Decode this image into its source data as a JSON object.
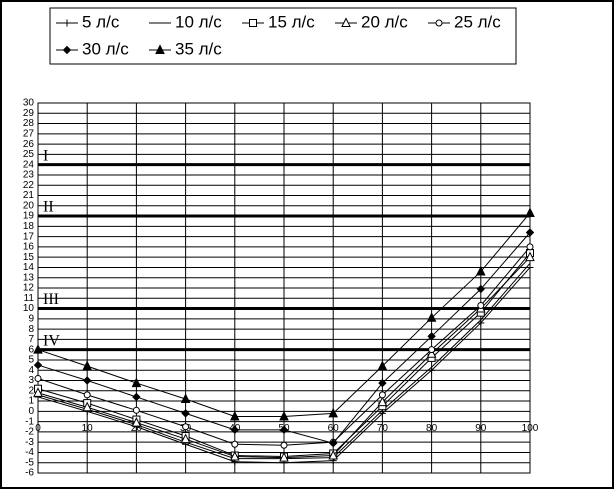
{
  "chart_data": {
    "type": "line",
    "x": [
      0,
      10,
      20,
      30,
      40,
      50,
      60,
      70,
      80,
      90,
      100
    ],
    "xlim": [
      0,
      100
    ],
    "xticks": [
      0,
      10,
      20,
      30,
      40,
      50,
      60,
      70,
      80,
      90,
      100
    ],
    "ylim": [
      -6,
      30
    ],
    "yticks": [
      -6,
      -5,
      -4,
      -3,
      -2,
      -1,
      0,
      1,
      2,
      3,
      4,
      5,
      6,
      7,
      8,
      9,
      10,
      11,
      12,
      13,
      14,
      15,
      16,
      17,
      18,
      19,
      20,
      21,
      22,
      23,
      24,
      25,
      26,
      27,
      28,
      29,
      30
    ],
    "grid": true,
    "reference_lines": [
      {
        "value": 24,
        "label": "I"
      },
      {
        "value": 19,
        "label": "II"
      },
      {
        "value": 10,
        "label": "III"
      },
      {
        "value": 6,
        "label": "IV"
      }
    ],
    "series": [
      {
        "name": "5 л/с",
        "color": "#000000",
        "marker": "plus",
        "values": [
          1.4,
          0.0,
          -1.5,
          -3.2,
          -4.9,
          -5.0,
          -4.8,
          -0.2,
          4.0,
          8.6,
          14.0
        ]
      },
      {
        "name": "10 л/с",
        "color": "#000000",
        "marker": "none",
        "values": [
          1.6,
          0.2,
          -1.3,
          -3.0,
          -4.6,
          -4.6,
          -4.5,
          0.1,
          4.3,
          8.9,
          14.4
        ]
      },
      {
        "name": "15 л/с",
        "color": "#000000",
        "marker": "square",
        "values": [
          2.2,
          0.8,
          -0.8,
          -2.4,
          -4.3,
          -4.4,
          -4.1,
          0.5,
          5.2,
          9.6,
          15.4
        ]
      },
      {
        "name": "20 л/с",
        "color": "#000000",
        "marker": "triangle-open",
        "values": [
          1.8,
          0.4,
          -1.1,
          -2.7,
          -4.4,
          -4.5,
          -4.3,
          0.9,
          5.6,
          10.0,
          15.0
        ]
      },
      {
        "name": "25 л/с",
        "color": "#000000",
        "marker": "circle",
        "values": [
          3.2,
          1.6,
          0.1,
          -1.5,
          -3.2,
          -3.3,
          -3.0,
          1.6,
          6.0,
          10.3,
          16.0
        ]
      },
      {
        "name": "30 л/с",
        "color": "#000000",
        "marker": "diamond",
        "values": [
          4.5,
          3.0,
          1.4,
          -0.2,
          -1.8,
          -1.8,
          -3.1,
          2.75,
          7.3,
          11.9,
          17.4
        ]
      },
      {
        "name": "35 л/с",
        "color": "#000000",
        "marker": "triangle",
        "values": [
          6.0,
          4.4,
          2.75,
          1.2,
          -0.5,
          -0.5,
          -0.2,
          4.4,
          9.1,
          13.6,
          19.3
        ]
      }
    ]
  }
}
